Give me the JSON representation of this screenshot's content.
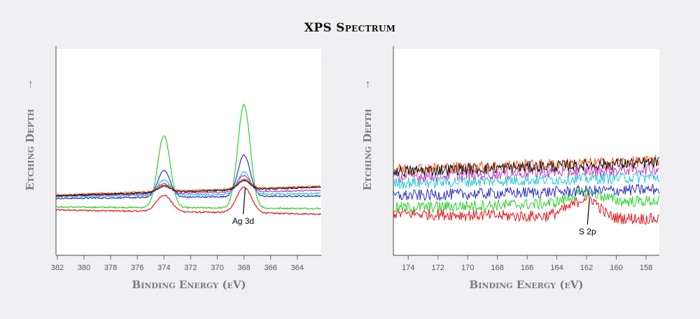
{
  "title": "XPS Spectrum",
  "chart_data": [
    {
      "type": "line",
      "title": "",
      "xlabel": "Binding Energy (eV)",
      "ylabel": "Etching Depth",
      "ylabel_arrow": "→",
      "xlim": [
        382.1,
        362.2
      ],
      "ylim": [
        0,
        100
      ],
      "xticks": [
        "382",
        "380",
        "378",
        "376",
        "374",
        "372",
        "370",
        "368",
        "366",
        "364"
      ],
      "annotation": {
        "text": "Ag 3d",
        "x": 367.9
      },
      "noise": 0.7,
      "series": [
        {
          "name": "red",
          "color": "#e8141b",
          "baseline": [
            22,
            20
          ],
          "peaks": [
            {
              "center": 374.0,
              "height": 8,
              "fwhm": 1.3
            },
            {
              "center": 368.0,
              "height": 12.5,
              "fwhm": 1.3
            }
          ]
        },
        {
          "name": "green",
          "color": "#2bd12b",
          "baseline": [
            23.4,
            22.7
          ],
          "peaks": [
            {
              "center": 374.0,
              "height": 35,
              "fwhm": 1.1
            },
            {
              "center": 368.0,
              "height": 50,
              "fwhm": 1.1
            }
          ]
        },
        {
          "name": "blue",
          "color": "#2a2fc4",
          "baseline": [
            27.6,
            28.8
          ],
          "peaks": [
            {
              "center": 374.0,
              "height": 13,
              "fwhm": 1.1
            },
            {
              "center": 368.0,
              "height": 20,
              "fwhm": 1.1
            }
          ]
        },
        {
          "name": "cyan",
          "color": "#21c8d6",
          "baseline": [
            28.5,
            30
          ],
          "peaks": [
            {
              "center": 374.0,
              "height": 7.5,
              "fwhm": 1.1
            },
            {
              "center": 368.0,
              "height": 11,
              "fwhm": 1.1
            }
          ]
        },
        {
          "name": "magenta",
          "color": "#c33cc3",
          "baseline": [
            28.8,
            31.5
          ],
          "peaks": [
            {
              "center": 374.0,
              "height": 5,
              "fwhm": 1.1
            },
            {
              "center": 368.0,
              "height": 8,
              "fwhm": 1.1
            }
          ]
        },
        {
          "name": "orange",
          "color": "#ff5a1f",
          "baseline": [
            29.3,
            33.5
          ],
          "peaks": [
            {
              "center": 374.0,
              "height": 3,
              "fwhm": 1.1
            },
            {
              "center": 368.0,
              "height": 4.5,
              "fwhm": 1.1
            }
          ]
        },
        {
          "name": "black",
          "color": "#111111",
          "baseline": [
            28.8,
            33
          ],
          "peaks": [
            {
              "center": 374.0,
              "height": 3,
              "fwhm": 1.1
            },
            {
              "center": 368.0,
              "height": 4.5,
              "fwhm": 1.1
            }
          ]
        }
      ]
    },
    {
      "type": "line",
      "title": "",
      "xlabel": "Binding Energy (eV)",
      "ylabel": "Etching Depth",
      "ylabel_arrow": "→",
      "xlim": [
        175.0,
        157.1
      ],
      "ylim": [
        0,
        100
      ],
      "xticks": [
        "174",
        "172",
        "170",
        "168",
        "166",
        "164",
        "162",
        "160",
        "158"
      ],
      "annotation": {
        "text": "S 2p",
        "x": 161.8
      },
      "noise": 4,
      "series": [
        {
          "name": "red",
          "color": "#e8141b",
          "baseline": [
            20.3,
            17.6
          ],
          "peaks": [
            {
              "center": 161.8,
              "height": 8,
              "fwhm": 1.6
            },
            {
              "center": 163.0,
              "height": 4,
              "fwhm": 2.0
            }
          ]
        },
        {
          "name": "green",
          "color": "#2bd12b",
          "baseline": [
            23,
            26.4
          ],
          "peaks": [
            {
              "center": 162.0,
              "height": 5,
              "fwhm": 2.5
            }
          ]
        },
        {
          "name": "blue",
          "color": "#2a2fc4",
          "baseline": [
            28.8,
            32
          ],
          "peaks": []
        },
        {
          "name": "cyan",
          "color": "#21c8d6",
          "baseline": [
            35,
            38
          ],
          "peaks": []
        },
        {
          "name": "magenta",
          "color": "#c33cc3",
          "baseline": [
            38,
            42
          ],
          "peaks": []
        },
        {
          "name": "orange",
          "color": "#ff5a1f",
          "baseline": [
            41.7,
            45.7
          ],
          "peaks": []
        },
        {
          "name": "black",
          "color": "#111111",
          "baseline": [
            40.7,
            45
          ],
          "peaks": []
        }
      ]
    }
  ]
}
